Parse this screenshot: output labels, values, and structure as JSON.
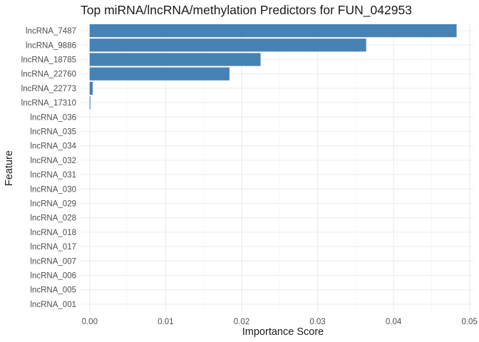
{
  "chart_data": {
    "type": "bar",
    "orientation": "horizontal",
    "title": "Top miRNA/lncRNA/methylation Predictors for FUN_042953",
    "xlabel": "Importance Score",
    "ylabel": "Feature",
    "xlim": [
      -0.0012,
      0.0505
    ],
    "x_ticks": [
      "0.00",
      "0.01",
      "0.02",
      "0.03",
      "0.04",
      "0.05"
    ],
    "x_tick_values": [
      0.0,
      0.01,
      0.02,
      0.03,
      0.04,
      0.05
    ],
    "bar_color": "#4682b4",
    "grid": true,
    "legend": "none",
    "categories": [
      "lncRNA_7487",
      "lncRNA_9886",
      "lncRNA_18785",
      "lncRNA_22760",
      "lncRNA_22773",
      "lncRNA_17310",
      "lncRNA_036",
      "lncRNA_035",
      "lncRNA_034",
      "lncRNA_032",
      "lncRNA_031",
      "lncRNA_030",
      "lncRNA_029",
      "lncRNA_028",
      "lncRNA_018",
      "lncRNA_017",
      "lncRNA_007",
      "lncRNA_006",
      "lncRNA_005",
      "lncRNA_001"
    ],
    "values": [
      0.0483,
      0.0364,
      0.0225,
      0.0184,
      0.0004,
      0.0001,
      0,
      0,
      0,
      0,
      0,
      0,
      0,
      0,
      0,
      0,
      0,
      0,
      0,
      0
    ]
  }
}
